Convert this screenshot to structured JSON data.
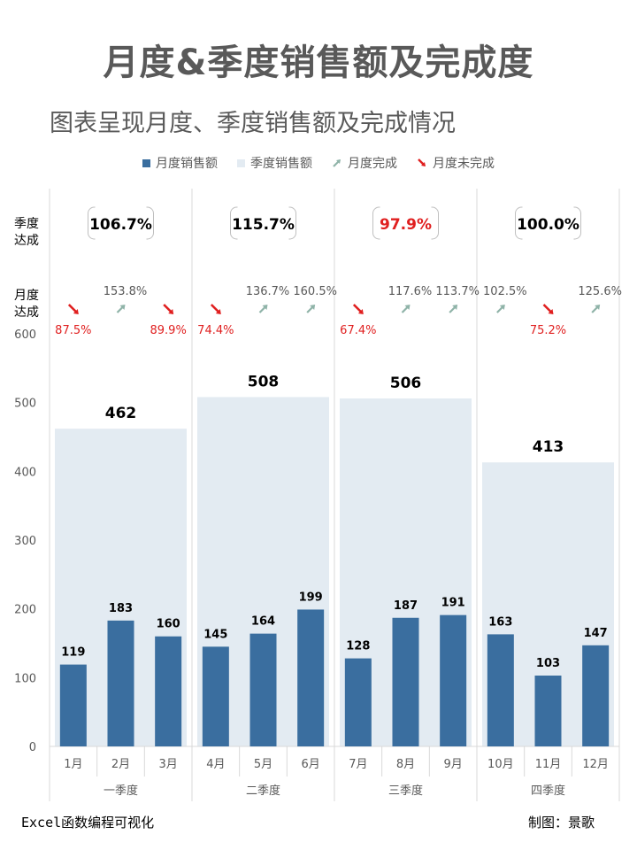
{
  "title": "月度&季度销售额及完成度",
  "subtitle": "图表呈现月度、季度销售额及完成情况",
  "legend": [
    {
      "label": "月度销售额",
      "icon": "square-swatch",
      "color": "#3A6E9F"
    },
    {
      "label": "季度销售额",
      "icon": "square-swatch",
      "color": "#E3EBF2"
    },
    {
      "label": "月度完成",
      "icon": "up-arrow-icon",
      "color": "#8FB3A8"
    },
    {
      "label": "月度未完成",
      "icon": "down-arrow-icon",
      "color": "#E01F1F"
    }
  ],
  "row_labels": {
    "quarter": [
      "季度",
      "达成"
    ],
    "month": [
      "月度",
      "达成"
    ]
  },
  "credits": {
    "left": "Excel函数编程可视化",
    "right": "制图：景歌"
  },
  "colors": {
    "monthly_bar": "#3A6E9F",
    "quarter_bar": "#E3EBF2",
    "done": "#8FB3A8",
    "undone": "#E01F1F",
    "grid": "#D9D9D9"
  },
  "chart_data": {
    "type": "bar",
    "y_ticks": [
      "0",
      "100",
      "200",
      "300",
      "400",
      "500",
      "600"
    ],
    "ylim": [
      0,
      600
    ],
    "grid": false,
    "legend_position": "top",
    "series": [
      {
        "name": "月度销售额",
        "values": [
          119,
          183,
          160,
          145,
          164,
          199,
          128,
          187,
          191,
          163,
          103,
          147
        ]
      },
      {
        "name": "季度销售额",
        "values": [
          462,
          508,
          506,
          413
        ]
      }
    ],
    "months": [
      {
        "label": "1月",
        "value": 119,
        "rate": "87.5%",
        "done": false
      },
      {
        "label": "2月",
        "value": 183,
        "rate": "153.8%",
        "done": true
      },
      {
        "label": "3月",
        "value": 160,
        "rate": "89.9%",
        "done": false
      },
      {
        "label": "4月",
        "value": 145,
        "rate": "74.4%",
        "done": false
      },
      {
        "label": "5月",
        "value": 164,
        "rate": "136.7%",
        "done": true
      },
      {
        "label": "6月",
        "value": 199,
        "rate": "160.5%",
        "done": true
      },
      {
        "label": "7月",
        "value": 128,
        "rate": "67.4%",
        "done": false
      },
      {
        "label": "8月",
        "value": 187,
        "rate": "117.6%",
        "done": true
      },
      {
        "label": "9月",
        "value": 191,
        "rate": "113.7%",
        "done": true
      },
      {
        "label": "10月",
        "value": 163,
        "rate": "102.5%",
        "done": true
      },
      {
        "label": "11月",
        "value": 103,
        "rate": "75.2%",
        "done": false
      },
      {
        "label": "12月",
        "value": 147,
        "rate": "125.6%",
        "done": true
      }
    ],
    "quarters": [
      {
        "label": "一季度",
        "value": 462,
        "rate": "106.7%",
        "done": true
      },
      {
        "label": "二季度",
        "value": 508,
        "rate": "115.7%",
        "done": true
      },
      {
        "label": "三季度",
        "value": 506,
        "rate": "97.9%",
        "done": false
      },
      {
        "label": "四季度",
        "value": 413,
        "rate": "100.0%",
        "done": true
      }
    ]
  }
}
